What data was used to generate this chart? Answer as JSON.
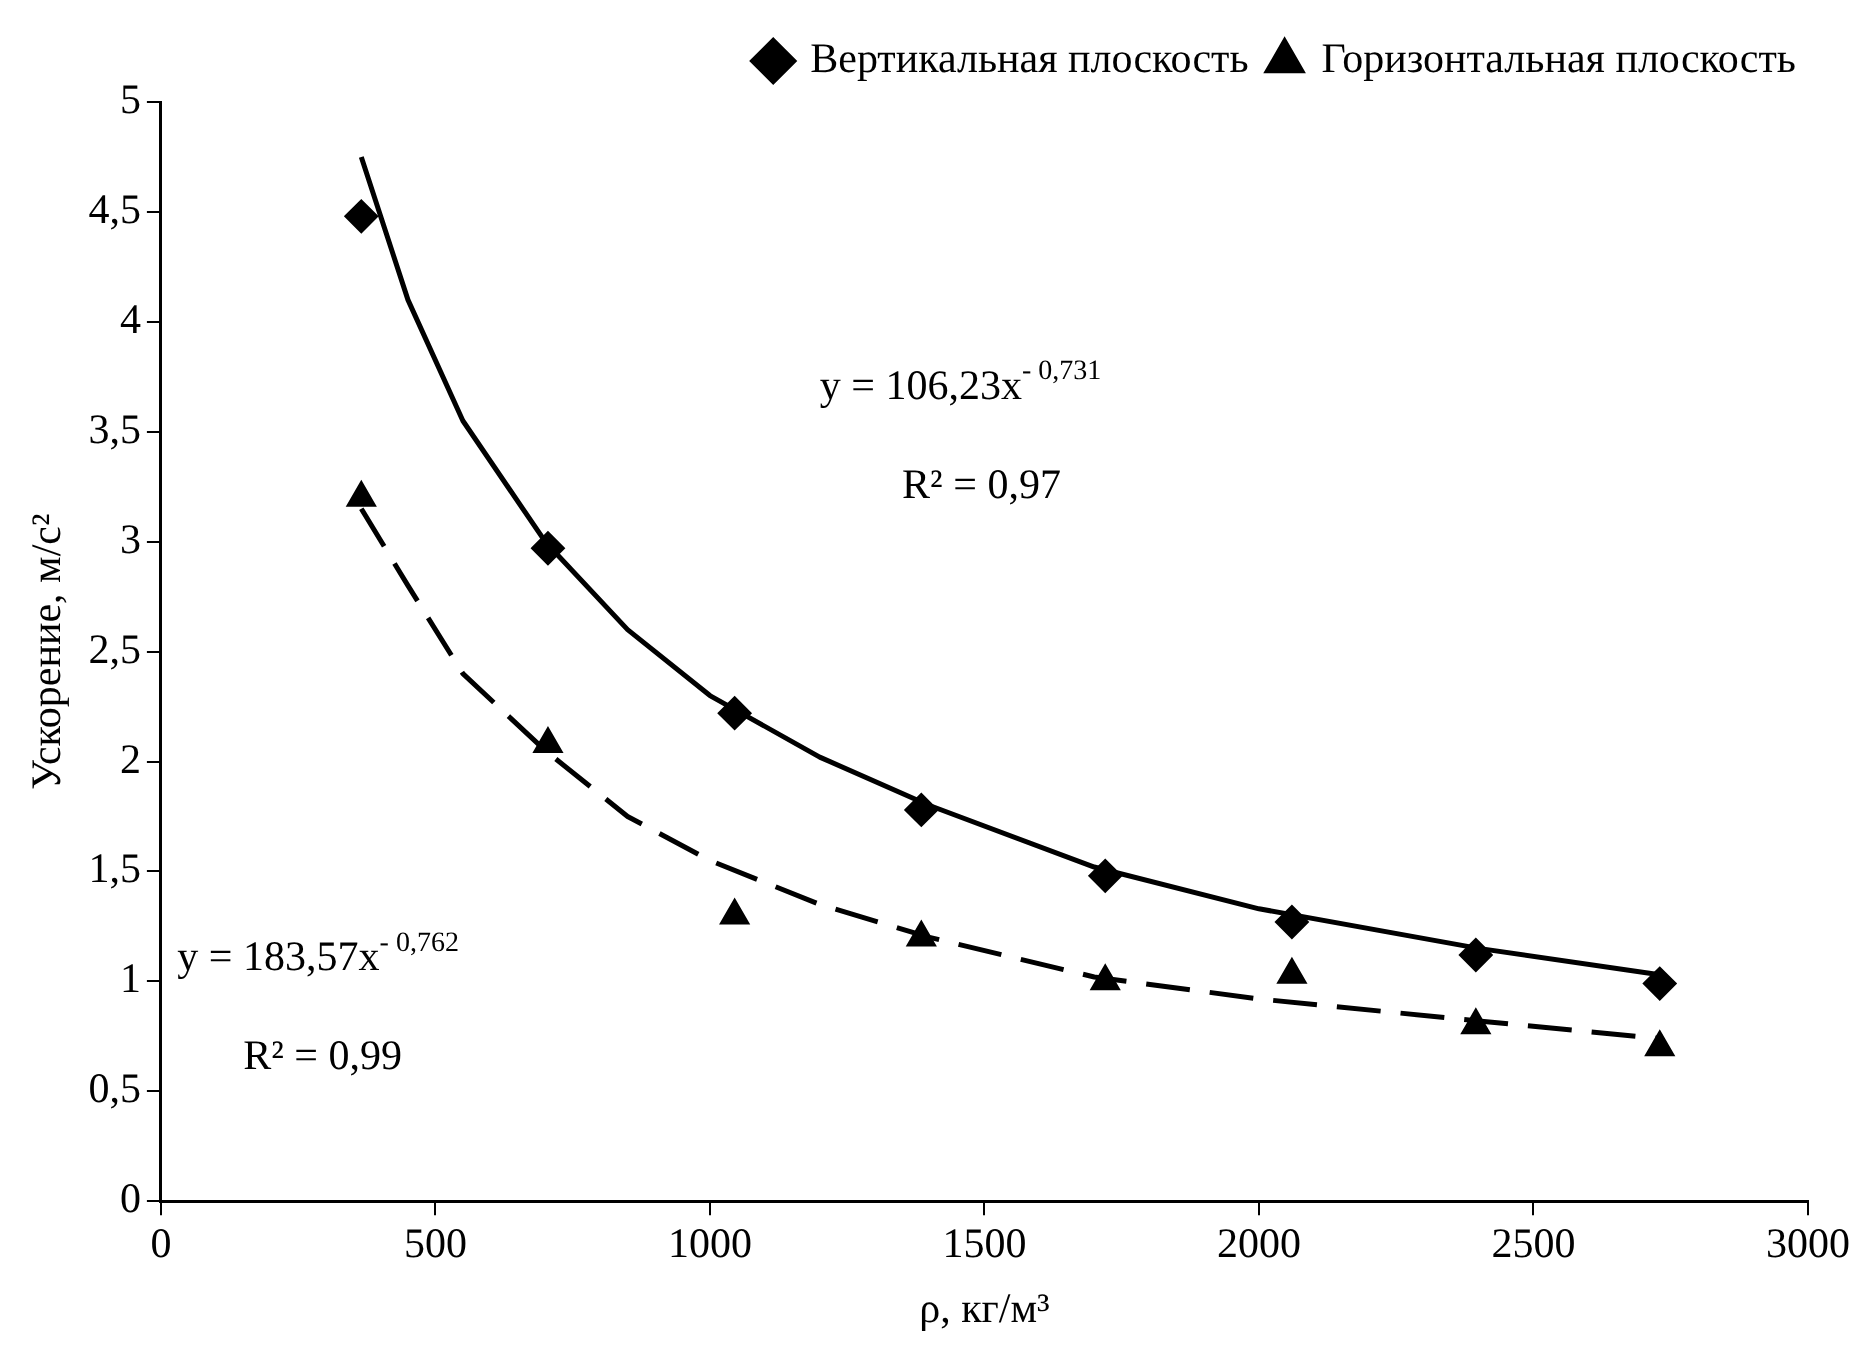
{
  "chart_data": {
    "type": "scatter",
    "xlabel": "ρ, кг/м³",
    "ylabel": "Ускорение, м/с²",
    "xlim": [
      0,
      3000
    ],
    "xticks": [
      0,
      500,
      1000,
      1500,
      2000,
      2500,
      3000
    ],
    "ylim": [
      0,
      5
    ],
    "yticks": [
      0,
      {
        "value": 0.5,
        "label": "0,5"
      },
      1,
      {
        "value": 1.5,
        "label": "1,5"
      },
      2,
      {
        "value": 2.5,
        "label": "2,5"
      },
      3,
      {
        "value": 3.5,
        "label": "3,5"
      },
      4,
      {
        "value": 4.5,
        "label": "4,5"
      },
      5
    ],
    "grid": false,
    "legend": "top right",
    "series": [
      {
        "name": "Вертикальная плоскость",
        "marker": "diamond",
        "color": "#000000",
        "x": [
          365,
          705,
          1045,
          1385,
          1720,
          2060,
          2395,
          2730
        ],
        "values": [
          4.48,
          2.97,
          2.22,
          1.78,
          1.48,
          1.27,
          1.12,
          0.99
        ]
      },
      {
        "name": "Горизонтальная плоскость",
        "marker": "triangle",
        "color": "#000000",
        "x": [
          365,
          705,
          1045,
          1385,
          1720,
          2060,
          2395,
          2730
        ],
        "values": [
          3.2,
          2.08,
          1.3,
          1.2,
          1.0,
          1.03,
          0.8,
          0.7
        ]
      },
      {
        "type": "line",
        "marker": "none",
        "line_style": "solid",
        "color": "#000000",
        "x": [
          365,
          450,
          550,
          700,
          850,
          1000,
          1200,
          1400,
          1700,
          2000,
          2400,
          2730
        ],
        "values": [
          4.75,
          4.1,
          3.55,
          3.0,
          2.6,
          2.3,
          2.02,
          1.8,
          1.52,
          1.33,
          1.15,
          1.03
        ]
      },
      {
        "type": "line",
        "marker": "none",
        "line_style": "dashed",
        "color": "#000000",
        "x": [
          365,
          450,
          550,
          700,
          850,
          1000,
          1200,
          1400,
          1700,
          2000,
          2400,
          2730
        ],
        "values": [
          3.15,
          2.8,
          2.4,
          2.05,
          1.75,
          1.55,
          1.35,
          1.2,
          1.02,
          0.92,
          0.82,
          0.74
        ]
      }
    ],
    "annotations": [
      "y = 106,23x$^{- 0,731}$",
      "R² = 0,97",
      "y = 183,57x$^{- 0,762}$",
      "R² = 0,99"
    ]
  }
}
